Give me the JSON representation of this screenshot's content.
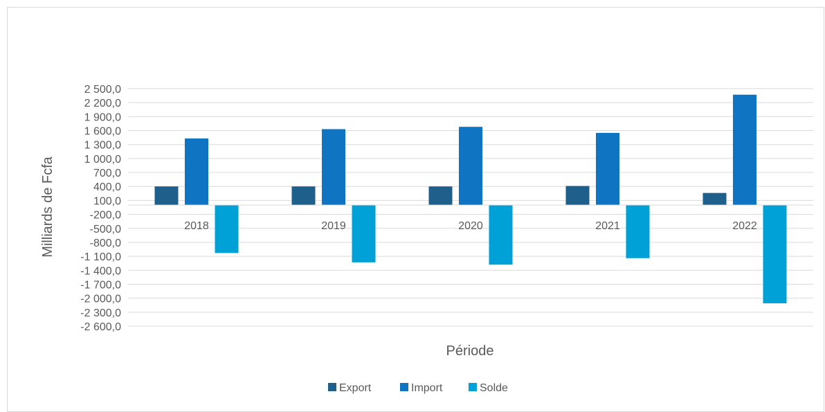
{
  "chart_data": {
    "type": "bar",
    "title": "",
    "xlabel": "Période",
    "ylabel": "Milliards de Fcfa",
    "categories": [
      "2018",
      "2019",
      "2020",
      "2021",
      "2022"
    ],
    "series": [
      {
        "name": "Export",
        "values": [
          400,
          400,
          400,
          410,
          260
        ],
        "color": "#1f5f8b"
      },
      {
        "name": "Import",
        "values": [
          1430,
          1630,
          1680,
          1550,
          2370
        ],
        "color": "#0f75c3"
      },
      {
        "name": "Solde",
        "values": [
          -1030,
          -1230,
          -1280,
          -1140,
          -2110
        ],
        "color": "#00a1d6"
      }
    ],
    "ylim": [
      -2600,
      2500
    ],
    "yticks": [
      2500,
      2200,
      1900,
      1600,
      1300,
      1000,
      700,
      400,
      100,
      -200,
      -500,
      -800,
      -1100,
      -1400,
      -1700,
      -2000,
      -2300,
      -2600
    ],
    "ytick_labels": [
      "2 500,0",
      "2 200,0",
      "1 900,0",
      "1 600,0",
      "1 300,0",
      "1 000,0",
      "700,0",
      "400,0",
      "100,0",
      "-200,0",
      "-500,0",
      "-800,0",
      "-1 100,0",
      "-1 400,0",
      "-1 700,0",
      "-2 000,0",
      "-2 300,0",
      "-2 600,0"
    ],
    "grid": true,
    "legend_position": "bottom"
  }
}
